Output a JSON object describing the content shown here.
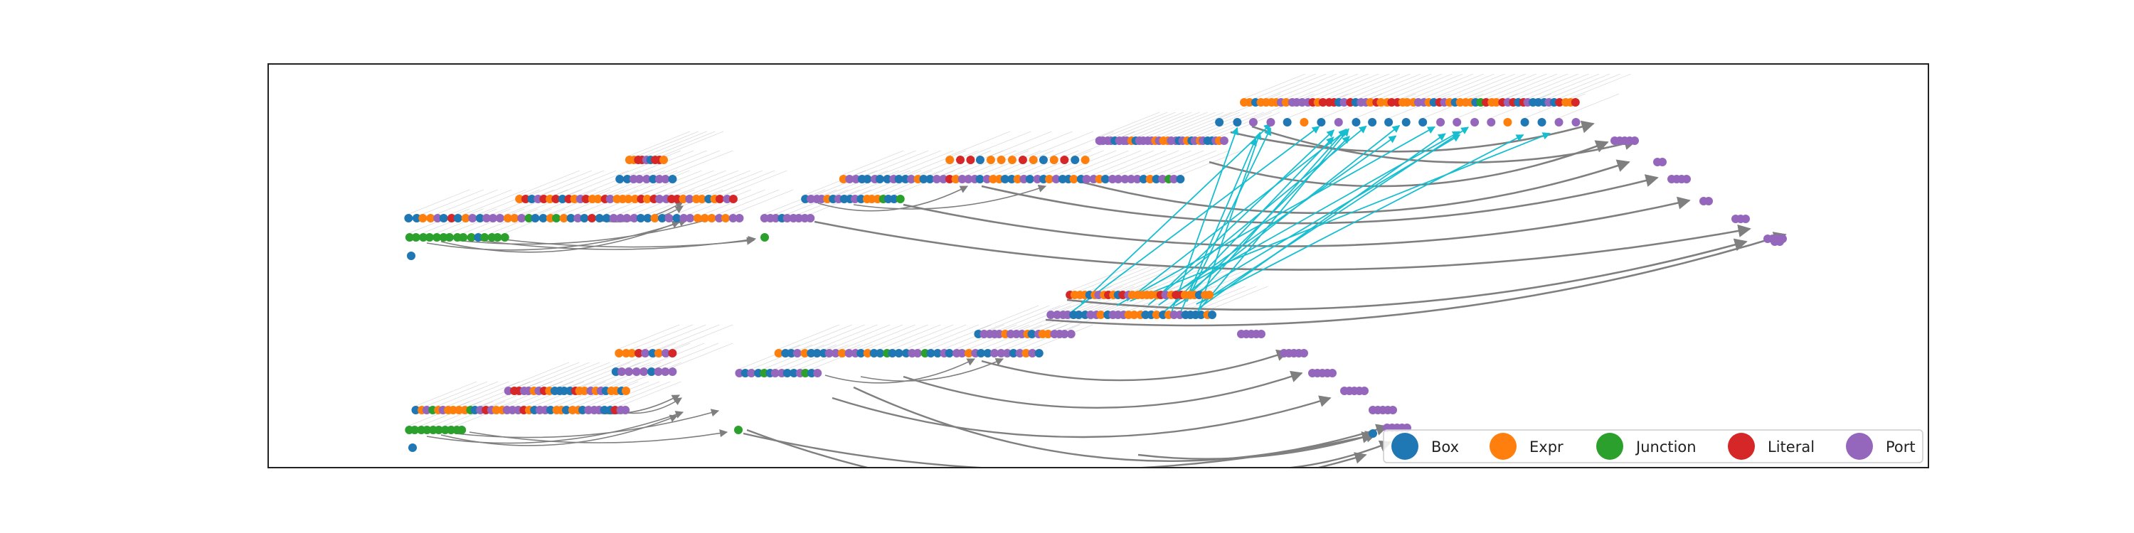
{
  "figure": {
    "background": "#ffffff",
    "frame_color": "#222222"
  },
  "colors": {
    "edge_gray": "#7f7f7f",
    "edge_cyan": "#17becf",
    "label_gray": "#9a9a9a"
  },
  "legend": {
    "placement": "lower-right",
    "items": [
      {
        "label": "Box",
        "color": "#1f77b4"
      },
      {
        "label": "Expr",
        "color": "#ff7f0e"
      },
      {
        "label": "Junction",
        "color": "#2ca02c"
      },
      {
        "label": "Literal",
        "color": "#d62728"
      },
      {
        "label": "Port",
        "color": "#9467bd"
      }
    ]
  }
}
